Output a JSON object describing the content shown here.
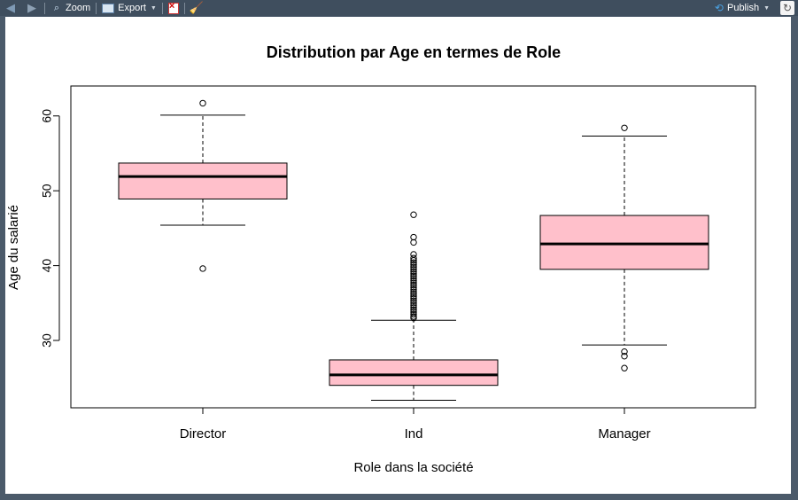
{
  "toolbar": {
    "zoom_label": "Zoom",
    "export_label": "Export",
    "publish_label": "Publish"
  },
  "colors": {
    "box_fill": "#ffc0cb",
    "toolbar_bg": "#3f4e5e"
  },
  "chart_data": {
    "type": "boxplot",
    "title": "Distribution par Age en termes de Role",
    "xlabel": "Role dans la société",
    "ylabel": "Age du salarié",
    "ylim": [
      21,
      64
    ],
    "yticks": [
      30,
      40,
      50,
      60
    ],
    "categories": [
      "Director",
      "Ind",
      "Manager"
    ],
    "boxes": [
      {
        "name": "Director",
        "whisker_low": 45.4,
        "q1": 48.9,
        "median": 51.9,
        "q3": 53.7,
        "whisker_high": 60.1,
        "outliers": [
          61.7,
          39.6
        ]
      },
      {
        "name": "Ind",
        "whisker_low": 22.0,
        "q1": 24.0,
        "median": 25.4,
        "q3": 27.4,
        "whisker_high": 32.7,
        "outliers": [
          46.8,
          43.8,
          43.1,
          41.5,
          41.0,
          40.7,
          40.4,
          40.1,
          39.8,
          39.5,
          39.2,
          38.9,
          38.6,
          38.3,
          38.0,
          37.7,
          37.4,
          37.1,
          36.8,
          36.5,
          36.2,
          35.9,
          35.6,
          35.3,
          35.0,
          34.7,
          34.4,
          34.1,
          33.8,
          33.5,
          33.2,
          33.0
        ]
      },
      {
        "name": "Manager",
        "whisker_low": 29.4,
        "q1": 39.5,
        "median": 42.9,
        "q3": 46.7,
        "whisker_high": 57.3,
        "outliers": [
          58.4,
          28.5,
          27.9,
          26.3
        ]
      }
    ],
    "grid": false,
    "legend": "none"
  }
}
